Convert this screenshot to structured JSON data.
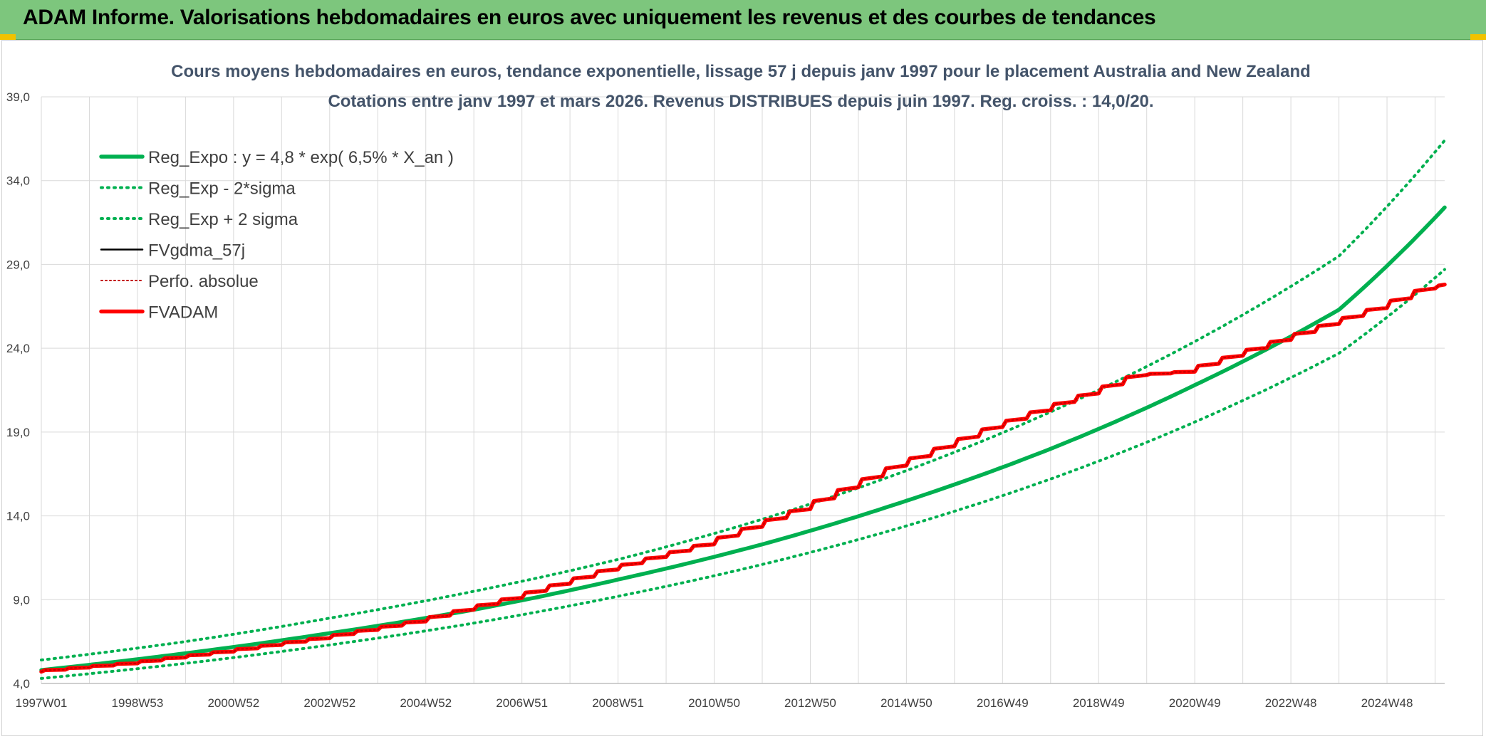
{
  "header": {
    "title": "ADAM Informe. Valorisations hebdomadaires en euros avec uniquement les revenus et des courbes de tendances"
  },
  "chart_data": {
    "type": "line",
    "title_lines": [
      "Cours moyens hebdomadaires en euros, tendance exponentielle, lissage 57 j depuis janv 1997 pour le placement Australia and New Zealand",
      "Cotations entre janv 1997 et mars 2026. Revenus DISTRIBUES depuis juin 1997. Reg. croiss. : 14,0/20."
    ],
    "xlabel": "",
    "ylabel": "",
    "ylim": [
      4.0,
      39.0
    ],
    "yticks": [
      "4,0",
      "9,0",
      "14,0",
      "19,0",
      "24,0",
      "29,0",
      "34,0",
      "39,0"
    ],
    "xrange": [
      1997.0,
      2026.2
    ],
    "xticks": [
      {
        "label": "1997W01",
        "x": 1997.0
      },
      {
        "label": "1998W53",
        "x": 1999.0
      },
      {
        "label": "2000W52",
        "x": 2001.0
      },
      {
        "label": "2002W52",
        "x": 2003.0
      },
      {
        "label": "2004W52",
        "x": 2005.0
      },
      {
        "label": "2006W51",
        "x": 2007.0
      },
      {
        "label": "2008W51",
        "x": 2009.0
      },
      {
        "label": "2010W50",
        "x": 2011.0
      },
      {
        "label": "2012W50",
        "x": 2013.0
      },
      {
        "label": "2014W50",
        "x": 2015.0
      },
      {
        "label": "2016W49",
        "x": 2017.0
      },
      {
        "label": "2018W49",
        "x": 2019.0
      },
      {
        "label": "2020W49",
        "x": 2021.0
      },
      {
        "label": "2022W48",
        "x": 2023.0
      },
      {
        "label": "2024W48",
        "x": 2025.0
      }
    ],
    "grid": true,
    "legend_position": "top-left",
    "series": [
      {
        "name": "Reg_Expo : y = 4,8 * exp( 6,5% *  X_an )",
        "color": "#00b050",
        "style": "solid-thick",
        "x": [
          1997.0,
          2000.0,
          2003.0,
          2006.0,
          2009.0,
          2012.0,
          2015.0,
          2018.0,
          2021.0,
          2024.0,
          2026.2
        ],
        "values": [
          4.8,
          5.8,
          7.0,
          8.4,
          10.2,
          12.3,
          14.9,
          18.0,
          21.8,
          26.3,
          32.4
        ]
      },
      {
        "name": "Reg_Exp - 2*sigma",
        "color": "#00b050",
        "style": "dotted",
        "x": [
          1997.0,
          2000.0,
          2003.0,
          2006.0,
          2009.0,
          2012.0,
          2015.0,
          2018.0,
          2021.0,
          2024.0,
          2026.2
        ],
        "values": [
          4.3,
          5.2,
          6.3,
          7.6,
          9.2,
          11.1,
          13.4,
          16.2,
          19.6,
          23.7,
          28.7
        ]
      },
      {
        "name": "Reg_Exp + 2 sigma",
        "color": "#00b050",
        "style": "dotted",
        "x": [
          1997.0,
          2000.0,
          2003.0,
          2006.0,
          2009.0,
          2012.0,
          2015.0,
          2018.0,
          2021.0,
          2024.0,
          2026.2
        ],
        "values": [
          5.4,
          6.5,
          7.9,
          9.5,
          11.4,
          13.8,
          16.7,
          20.2,
          24.4,
          29.5,
          36.4
        ]
      },
      {
        "name": "FVgdma_57j",
        "color": "#000000",
        "style": "solid",
        "x": [
          1997.0,
          1999.0,
          2001.0,
          2003.0,
          2005.0,
          2007.0,
          2009.0,
          2011.0,
          2013.0,
          2015.0,
          2017.0,
          2019.0,
          2020.0,
          2021.0,
          2023.0,
          2025.0,
          2026.2
        ],
        "values": [
          4.7,
          5.2,
          5.9,
          6.7,
          7.7,
          9.1,
          10.8,
          12.3,
          14.4,
          17.0,
          19.3,
          21.3,
          22.4,
          22.6,
          24.5,
          26.4,
          27.8
        ]
      },
      {
        "name": "Perfo. absolue",
        "color": "#c00000",
        "style": "dotted-thin",
        "x": [
          1997.0,
          1999.0,
          2001.0,
          2003.0,
          2005.0,
          2007.0,
          2009.0,
          2011.0,
          2013.0,
          2015.0,
          2017.0,
          2019.0,
          2020.0,
          2021.0,
          2023.0,
          2025.0,
          2026.2
        ],
        "values": [
          4.7,
          5.2,
          5.9,
          6.7,
          7.7,
          9.1,
          10.8,
          12.3,
          14.4,
          17.0,
          19.3,
          21.3,
          22.4,
          22.6,
          24.5,
          26.4,
          27.8
        ]
      },
      {
        "name": "FVADAM",
        "color": "#ff0000",
        "style": "solid-thick-stepped",
        "x": [
          1997.0,
          1999.0,
          2001.0,
          2003.0,
          2005.0,
          2007.0,
          2009.0,
          2011.0,
          2013.0,
          2015.0,
          2017.0,
          2019.0,
          2020.0,
          2021.0,
          2023.0,
          2025.0,
          2026.2
        ],
        "values": [
          4.7,
          5.2,
          5.9,
          6.7,
          7.7,
          9.1,
          10.8,
          12.3,
          14.4,
          17.0,
          19.3,
          21.3,
          22.4,
          22.6,
          24.5,
          26.4,
          27.8
        ]
      }
    ]
  }
}
